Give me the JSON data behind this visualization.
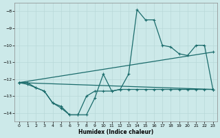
{
  "xlabel": "Humidex (Indice chaleur)",
  "bg_color": "#cce9e9",
  "grid_color": "#b8d8d8",
  "line_color": "#1a6b6b",
  "xlim": [
    -0.5,
    23.5
  ],
  "ylim": [
    -14.5,
    -7.5
  ],
  "yticks": [
    -14,
    -13,
    -12,
    -11,
    -10,
    -9,
    -8
  ],
  "xticks": [
    0,
    1,
    2,
    3,
    4,
    5,
    6,
    7,
    8,
    9,
    10,
    11,
    12,
    13,
    14,
    15,
    16,
    17,
    18,
    19,
    20,
    21,
    22,
    23
  ],
  "line1_x": [
    0,
    1,
    2,
    3,
    4,
    5,
    6,
    7,
    8,
    9,
    10,
    11,
    12,
    13,
    14,
    15,
    16,
    17,
    18,
    19,
    20,
    21,
    22,
    23
  ],
  "line1_y": [
    -12.2,
    -12.2,
    -12.5,
    -12.7,
    -13.4,
    -13.7,
    -14.1,
    -14.1,
    -14.1,
    -13.1,
    -11.7,
    -12.7,
    -12.6,
    -11.7,
    -7.9,
    -8.5,
    -8.5,
    -10.0,
    -10.1,
    -10.5,
    -10.6,
    -10.0,
    -10.0,
    -12.6
  ],
  "line2_x": [
    0,
    1,
    2,
    3,
    4,
    5,
    6,
    7,
    8,
    9,
    10,
    11,
    12,
    13,
    14,
    15,
    16,
    17,
    18,
    19,
    20,
    21,
    22,
    23
  ],
  "line2_y": [
    -12.2,
    -12.3,
    -12.5,
    -12.7,
    -13.4,
    -13.6,
    -14.1,
    -14.1,
    -13.0,
    -12.7,
    -12.7,
    -12.7,
    -12.6,
    -12.6,
    -12.6,
    -12.6,
    -12.6,
    -12.6,
    -12.6,
    -12.6,
    -12.6,
    -12.6,
    -12.6,
    -12.6
  ],
  "line3_x": [
    0,
    23
  ],
  "line3_y": [
    -12.2,
    -12.6
  ]
}
